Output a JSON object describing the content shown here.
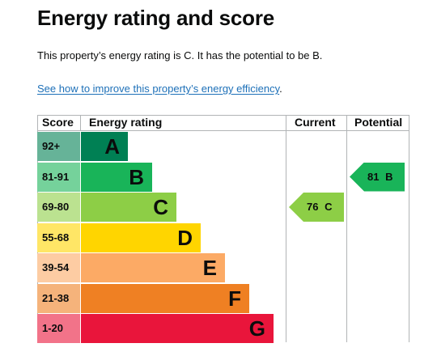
{
  "title": "Energy rating and score",
  "summary": "This property’s energy rating is C. It has the potential to be B.",
  "improve_link": "See how to improve this property’s energy efficiency",
  "improve_suffix": ".",
  "chart": {
    "headers": {
      "score": "Score",
      "energy_rating": "Energy rating",
      "current": "Current",
      "potential": "Potential"
    },
    "bands": [
      {
        "range": "92+",
        "letter": "A",
        "color": "#008054",
        "score_bg": "#66b398"
      },
      {
        "range": "81-91",
        "letter": "B",
        "color": "#19b459",
        "score_bg": "#75d29b"
      },
      {
        "range": "69-80",
        "letter": "C",
        "color": "#8dce46",
        "score_bg": "#bbe290"
      },
      {
        "range": "55-68",
        "letter": "D",
        "color": "#ffd500",
        "score_bg": "#ffe666"
      },
      {
        "range": "39-54",
        "letter": "E",
        "color": "#fcaa65",
        "score_bg": "#fdcca3"
      },
      {
        "range": "21-38",
        "letter": "F",
        "color": "#ef8023",
        "score_bg": "#f5b37b"
      },
      {
        "range": "1-20",
        "letter": "G",
        "color": "#e9153b",
        "score_bg": "#f27389"
      }
    ],
    "current": {
      "score": "76",
      "letter": "C",
      "color": "#8dce46"
    },
    "potential": {
      "score": "81",
      "letter": "B",
      "color": "#19b459"
    }
  }
}
